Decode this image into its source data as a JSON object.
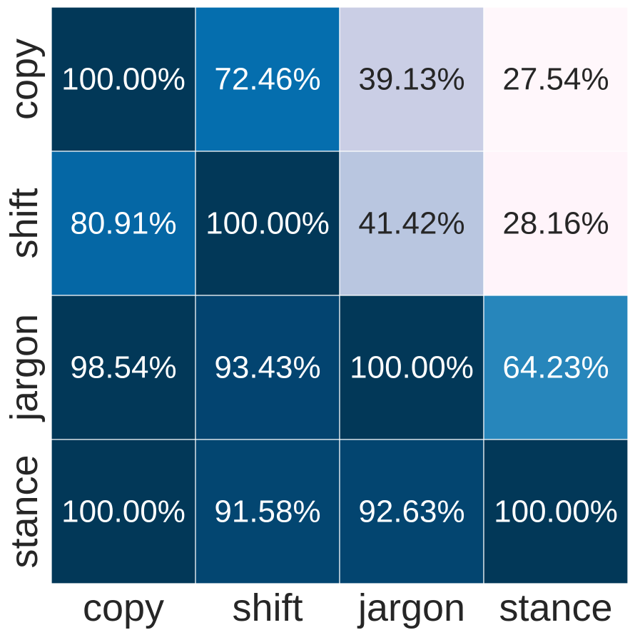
{
  "chart_data": {
    "type": "heatmap",
    "title": "",
    "xlabel": "",
    "ylabel": "",
    "x_categories": [
      "copy",
      "shift",
      "jargon",
      "stance"
    ],
    "y_categories": [
      "copy",
      "shift",
      "jargon",
      "stance"
    ],
    "values": [
      [
        100.0,
        72.46,
        39.13,
        27.54
      ],
      [
        80.91,
        100.0,
        41.42,
        28.16
      ],
      [
        98.54,
        93.43,
        100.0,
        64.23
      ],
      [
        100.0,
        91.58,
        92.63,
        100.0
      ]
    ],
    "labels": [
      [
        "100.00%",
        "72.46%",
        "39.13%",
        "27.54%"
      ],
      [
        "80.91%",
        "100.00%",
        "41.42%",
        "28.16%"
      ],
      [
        "98.54%",
        "93.43%",
        "100.00%",
        "64.23%"
      ],
      [
        "100.00%",
        "91.58%",
        "92.63%",
        "100.00%"
      ]
    ],
    "colormap": "PuBu",
    "value_range": [
      27.54,
      100.0
    ],
    "grid_lines": true,
    "colorbar": false,
    "cell_colors": [
      [
        "#023858",
        "#056eae",
        "#cacee5",
        "#fff7fb"
      ],
      [
        "#0567a5",
        "#023858",
        "#b9c6e0",
        "#fff4fa"
      ],
      [
        "#023858",
        "#034470",
        "#023858",
        "#2786bb"
      ],
      [
        "#023858",
        "#034671",
        "#034570",
        "#023858"
      ]
    ],
    "label_colors": {
      "dark_cell_text": "#ffffff",
      "light_cell_text": "#262626"
    }
  }
}
